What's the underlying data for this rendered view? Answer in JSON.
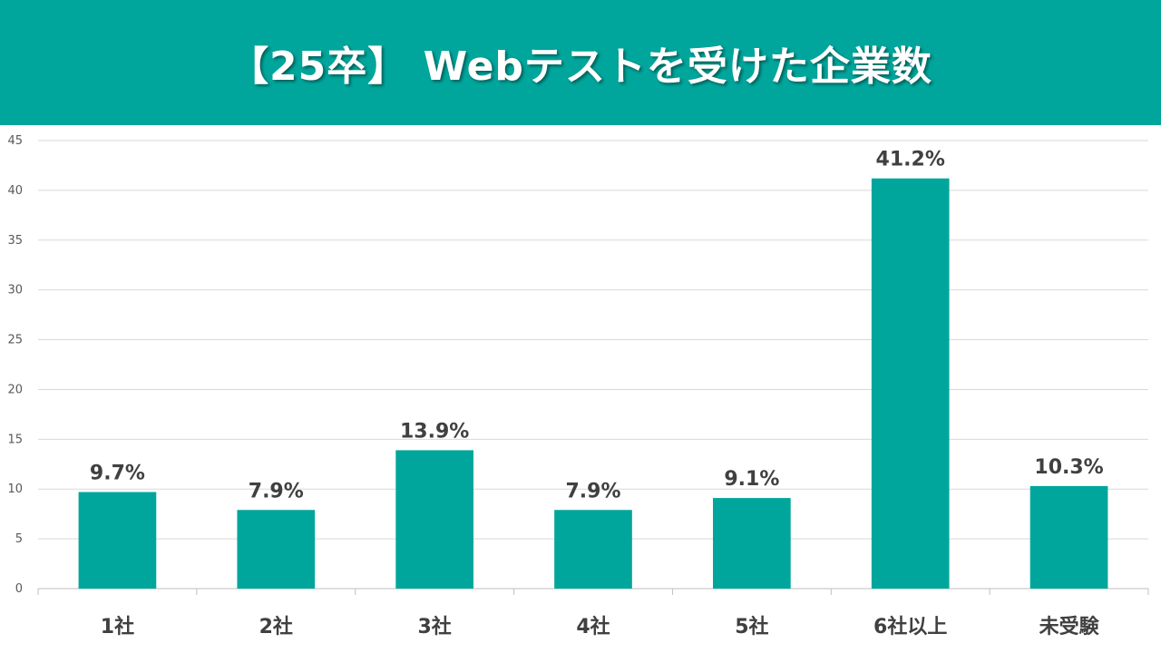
{
  "header": {
    "title": "【25卒】 Webテストを受けた企業数"
  },
  "colors": {
    "accent": "#00a69c",
    "bar": "#00a69c",
    "grid": "#d9d9d9",
    "text": "#404040"
  },
  "chart_data": {
    "type": "bar",
    "title": "【25卒】 Webテストを受けた企業数",
    "xlabel": "",
    "ylabel": "",
    "categories": [
      "1社",
      "2社",
      "3社",
      "4社",
      "5社",
      "6社以上",
      "未受験"
    ],
    "values": [
      9.7,
      7.9,
      13.9,
      7.9,
      9.1,
      41.2,
      10.3
    ],
    "data_labels": [
      "9.7%",
      "7.9%",
      "13.9%",
      "7.9%",
      "9.1%",
      "41.2%",
      "10.3%"
    ],
    "ylim": [
      0,
      45
    ],
    "yticks": [
      "0",
      "5",
      "10",
      "15",
      "20",
      "25",
      "30",
      "35",
      "40",
      "45"
    ],
    "grid": true,
    "legend": "none"
  }
}
